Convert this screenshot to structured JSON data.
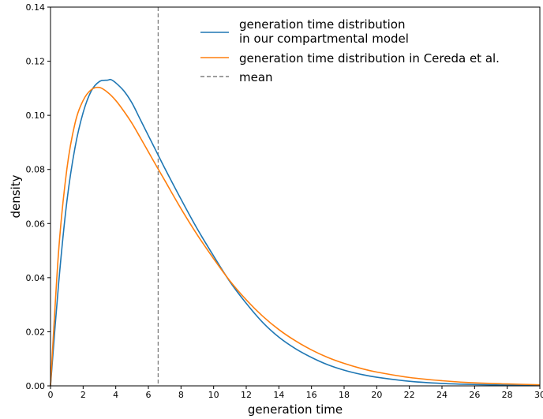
{
  "chart_data": {
    "type": "line",
    "xlabel": "generation time",
    "ylabel": "density",
    "xlim": [
      0,
      30
    ],
    "ylim": [
      0,
      0.14
    ],
    "xticks": [
      "0",
      "2",
      "4",
      "6",
      "8",
      "10",
      "12",
      "14",
      "16",
      "18",
      "20",
      "22",
      "24",
      "26",
      "28",
      "30"
    ],
    "yticks": [
      "0.00",
      "0.02",
      "0.04",
      "0.06",
      "0.08",
      "0.10",
      "0.12",
      "0.14"
    ],
    "grid": false,
    "legend_position": "top-right",
    "series": [
      {
        "name_lines": [
          "generation time distribution",
          "in our compartmental model"
        ],
        "color": "#1f77b4",
        "x": [
          0,
          0.5,
          1,
          1.5,
          2,
          2.5,
          3,
          3.5,
          3.7,
          4,
          4.5,
          5,
          5.5,
          6,
          6.5,
          7,
          8,
          9,
          10,
          11,
          12,
          13,
          14,
          15,
          16,
          17,
          18,
          19,
          20,
          22,
          24,
          26,
          28,
          30
        ],
        "y": [
          0,
          0.038,
          0.068,
          0.088,
          0.101,
          0.109,
          0.1125,
          0.113,
          0.1132,
          0.112,
          0.109,
          0.1045,
          0.0985,
          0.0925,
          0.0865,
          0.0805,
          0.069,
          0.058,
          0.048,
          0.0385,
          0.0305,
          0.0235,
          0.018,
          0.0138,
          0.0105,
          0.0078,
          0.0058,
          0.0043,
          0.0032,
          0.0017,
          0.0009,
          0.0005,
          0.0003,
          0.0001
        ]
      },
      {
        "name_lines": [
          "generation time distribution in Cereda et al."
        ],
        "color": "#ff7f0e",
        "x": [
          0,
          0.5,
          1,
          1.5,
          2,
          2.5,
          3,
          3.5,
          4,
          4.5,
          5,
          5.5,
          6,
          6.5,
          7,
          8,
          9,
          10,
          11,
          12,
          13,
          14,
          15,
          16,
          17,
          18,
          19,
          20,
          22,
          24,
          26,
          28,
          30
        ],
        "y": [
          0,
          0.05,
          0.08,
          0.097,
          0.1055,
          0.1095,
          0.1103,
          0.1085,
          0.1055,
          0.1015,
          0.097,
          0.0918,
          0.0865,
          0.0812,
          0.076,
          0.0655,
          0.0558,
          0.047,
          0.0388,
          0.0318,
          0.0258,
          0.0208,
          0.0167,
          0.0133,
          0.0105,
          0.0083,
          0.0065,
          0.0051,
          0.0031,
          0.0019,
          0.0011,
          0.0007,
          0.0004
        ]
      }
    ],
    "mean_line": {
      "label": "mean",
      "x": 6.6,
      "color": "#7f7f7f"
    }
  }
}
